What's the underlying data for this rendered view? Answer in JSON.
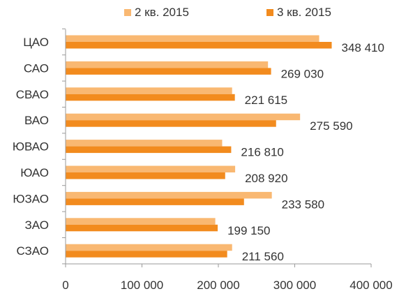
{
  "chart_data": {
    "type": "bar",
    "orientation": "horizontal",
    "categories": [
      "ЦАО",
      "САО",
      "СВАО",
      "ВАО",
      "ЮВАО",
      "ЮАО",
      "ЮЗАО",
      "ЗАО",
      "СЗАО"
    ],
    "series": [
      {
        "name": "2 кв. 2015",
        "color": "#f9b872",
        "values": [
          332000,
          265000,
          218000,
          307000,
          205000,
          222000,
          270000,
          196000,
          218000
        ]
      },
      {
        "name": "3 кв. 2015",
        "color": "#f28b1e",
        "values": [
          348410,
          269030,
          221615,
          275590,
          216810,
          208920,
          233580,
          199150,
          211560
        ]
      }
    ],
    "data_labels": [
      "348 410",
      "269 030",
      "221 615",
      "275 590",
      "216 810",
      "208 920",
      "233 580",
      "199 150",
      "211 560"
    ],
    "xlim": [
      0,
      400000
    ],
    "x_ticks": [
      0,
      100000,
      200000,
      300000,
      400000
    ],
    "x_tick_labels": [
      "0",
      "100 000",
      "200 000",
      "300 000",
      "400 000"
    ],
    "legend_position": "top",
    "grid": false
  }
}
